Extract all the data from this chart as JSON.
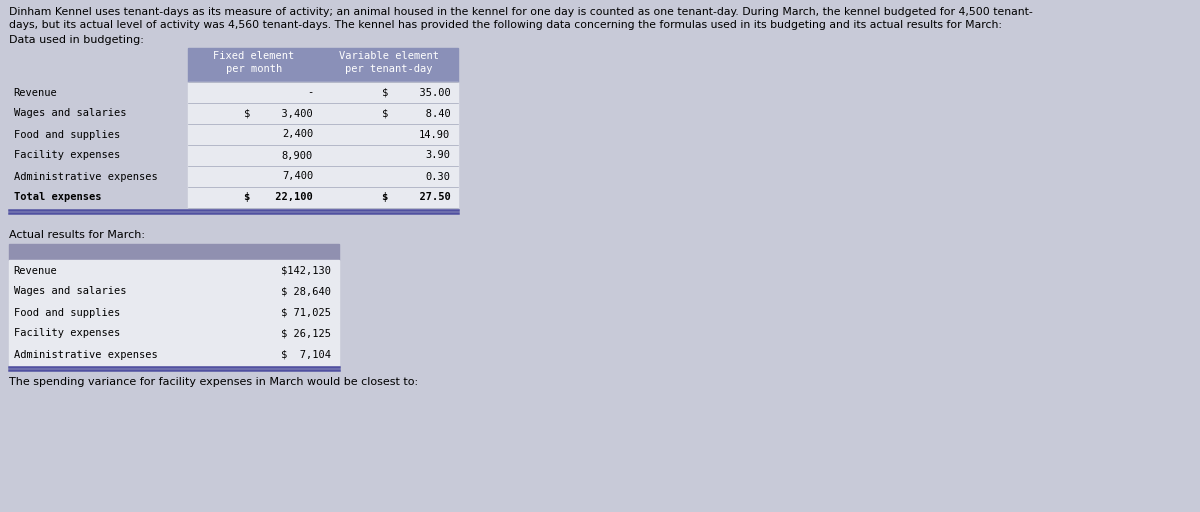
{
  "intro_line1": "Dinham Kennel uses tenant-days as its measure of activity; an animal housed in the kennel for one day is counted as one tenant-day. During March, the kennel budgeted for 4,500 tenant-",
  "intro_line2": "days, but its actual level of activity was 4,560 tenant-days. The kennel has provided the following data concerning the formulas used in its budgeting and its actual results for March:",
  "data_used_label": "Data used in budgeting:",
  "table1_header_col2": "Fixed element\nper month",
  "table1_header_col3": "Variable element\nper tenant-day",
  "table1_rows": [
    [
      "Revenue",
      "-",
      "$     35.00"
    ],
    [
      "Wages and salaries",
      "$     3,400",
      "$      8.40"
    ],
    [
      "Food and supplies",
      "2,400",
      "14.90"
    ],
    [
      "Facility expenses",
      "8,900",
      "3.90"
    ],
    [
      "Administrative expenses",
      "7,400",
      "0.30"
    ],
    [
      "Total expenses",
      "$    22,100",
      "$     27.50"
    ]
  ],
  "actual_label": "Actual results for March:",
  "table2_rows": [
    [
      "Revenue",
      "$142,130"
    ],
    [
      "Wages and salaries",
      "$ 28,640"
    ],
    [
      "Food and supplies",
      "$ 71,025"
    ],
    [
      "Facility expenses",
      "$ 26,125"
    ],
    [
      "Administrative expenses",
      "$  7,104"
    ]
  ],
  "footer_text": "The spending variance for facility expenses in March would be closest to:",
  "table_header_bg": "#8a90b8",
  "table_row_bg": "#e8eaf0",
  "table2_header_bg": "#9090b0",
  "page_bg": "#c8cad8",
  "text_color": "#000000"
}
